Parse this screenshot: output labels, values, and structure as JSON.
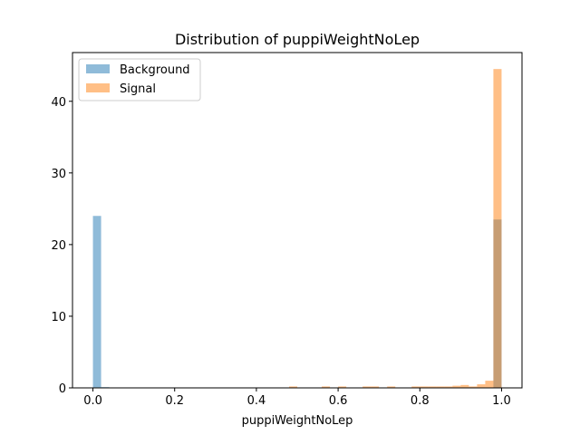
{
  "chart_data": {
    "type": "bar",
    "title": "Distribution of puppiWeightNoLep",
    "xlabel": "puppiWeightNoLep",
    "ylabel": "",
    "xlim": [
      -0.05,
      1.05
    ],
    "ylim": [
      0,
      46.8
    ],
    "xticks": [
      "0.0",
      "0.2",
      "0.4",
      "0.6",
      "0.8",
      "1.0"
    ],
    "xtick_values": [
      0.0,
      0.2,
      0.4,
      0.6,
      0.8,
      1.0
    ],
    "yticks": [
      "0",
      "10",
      "20",
      "30",
      "40"
    ],
    "ytick_values": [
      0,
      10,
      20,
      30,
      40
    ],
    "bin_edges": [
      0.0,
      0.02,
      0.04,
      0.06,
      0.08,
      0.1,
      0.12,
      0.14,
      0.16,
      0.18,
      0.2,
      0.22,
      0.24,
      0.26,
      0.28,
      0.3,
      0.32,
      0.34,
      0.36,
      0.38,
      0.4,
      0.42,
      0.44,
      0.46,
      0.48,
      0.5,
      0.52,
      0.54,
      0.56,
      0.58,
      0.6,
      0.62,
      0.64,
      0.66,
      0.68,
      0.7,
      0.72,
      0.74,
      0.76,
      0.78,
      0.8,
      0.82,
      0.84,
      0.86,
      0.88,
      0.9,
      0.92,
      0.94,
      0.96,
      0.98,
      1.0
    ],
    "series": [
      {
        "name": "Background",
        "color": "#1f77b4",
        "alpha": 0.5,
        "values": [
          24.0,
          0.1,
          0,
          0,
          0,
          0,
          0,
          0,
          0,
          0,
          0,
          0,
          0,
          0,
          0,
          0,
          0,
          0,
          0,
          0,
          0,
          0,
          0,
          0,
          0,
          0,
          0,
          0,
          0,
          0,
          0,
          0,
          0,
          0,
          0,
          0,
          0,
          0,
          0,
          0,
          0,
          0,
          0,
          0,
          0,
          0,
          0,
          0,
          0,
          23.5
        ]
      },
      {
        "name": "Signal",
        "color": "#ff7f0e",
        "alpha": 0.5,
        "values": [
          0,
          0,
          0,
          0,
          0,
          0,
          0,
          0,
          0,
          0,
          0,
          0,
          0,
          0,
          0,
          0,
          0,
          0,
          0,
          0,
          0,
          0,
          0,
          0,
          0.2,
          0,
          0,
          0,
          0.2,
          0,
          0.2,
          0,
          0,
          0.2,
          0.2,
          0,
          0.2,
          0,
          0,
          0.2,
          0.2,
          0.2,
          0.2,
          0.2,
          0.3,
          0.4,
          0.2,
          0.5,
          1.0,
          44.5
        ]
      }
    ],
    "legend_position": "upper-left",
    "grid": false
  }
}
